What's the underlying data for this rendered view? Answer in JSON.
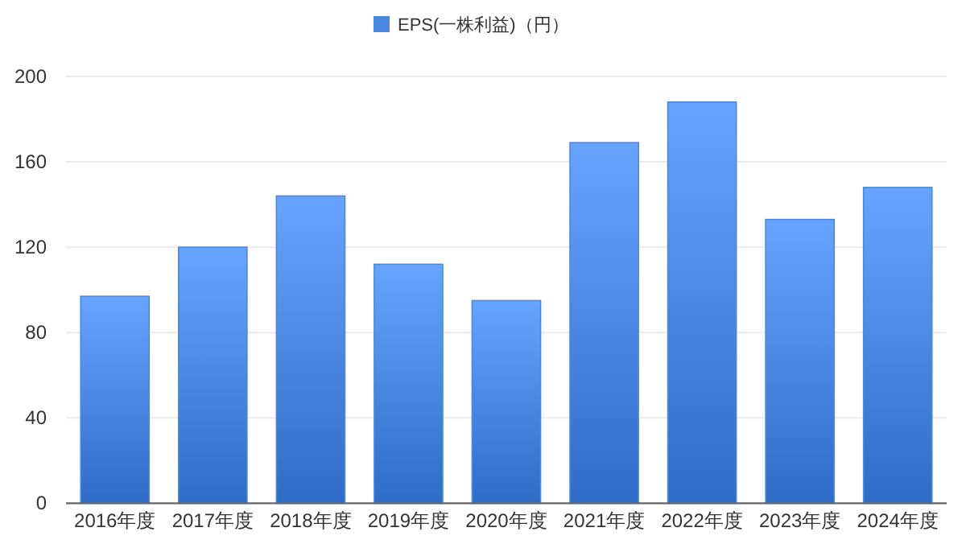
{
  "chart_data": {
    "type": "bar",
    "categories": [
      "2016年度",
      "2017年度",
      "2018年度",
      "2019年度",
      "2020年度",
      "2021年度",
      "2022年度",
      "2023年度",
      "2024年度"
    ],
    "series": [
      {
        "name": "EPS(一株利益)（円）",
        "color": "#4a88e2",
        "values": [
          97,
          120,
          144,
          112,
          95,
          169,
          188,
          133,
          148
        ]
      }
    ],
    "ylim": [
      0,
      200
    ],
    "yticks": [
      0,
      40,
      80,
      120,
      160,
      200
    ],
    "grid": "y",
    "legend": "top"
  }
}
